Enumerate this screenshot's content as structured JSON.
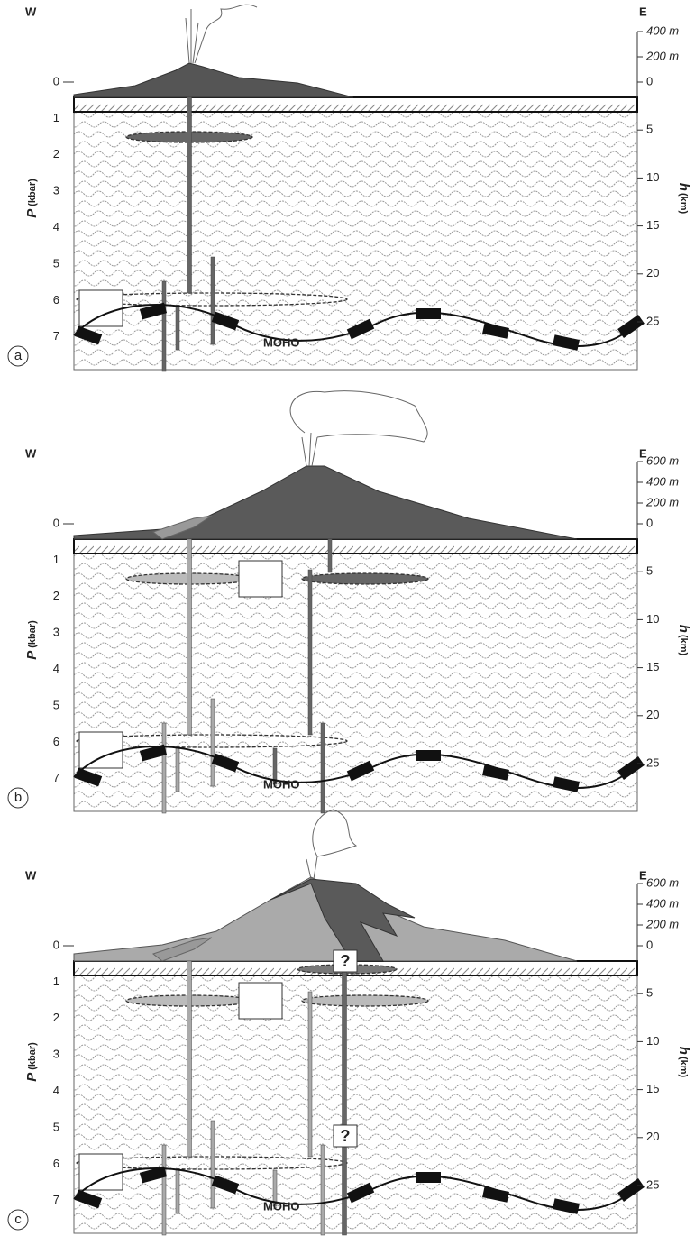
{
  "panels": [
    {
      "letter": "a",
      "west": "W",
      "east": "E",
      "pressure_label": "P",
      "pressure_unit": "(kbar)",
      "pressure_ticks": [
        "0",
        "1",
        "2",
        "3",
        "4",
        "5",
        "6",
        "7"
      ],
      "elevation_ticks": [
        "400 m",
        "200 m"
      ],
      "depth_ticks": [
        "0",
        "5",
        "10",
        "15",
        "20",
        "25"
      ],
      "depth_label": "h",
      "depth_unit": "(km)",
      "moho": "MOHO"
    },
    {
      "letter": "b",
      "west": "W",
      "east": "E",
      "pressure_label": "P",
      "pressure_unit": "(kbar)",
      "pressure_ticks": [
        "0",
        "1",
        "2",
        "3",
        "4",
        "5",
        "6",
        "7"
      ],
      "elevation_ticks": [
        "600 m",
        "400 m",
        "200 m"
      ],
      "depth_ticks": [
        "0",
        "5",
        "10",
        "15",
        "20",
        "25"
      ],
      "depth_label": "h",
      "depth_unit": "(km)",
      "moho": "MOHO"
    },
    {
      "letter": "c",
      "west": "W",
      "east": "E",
      "pressure_label": "P",
      "pressure_unit": "(kbar)",
      "pressure_ticks": [
        "0",
        "1",
        "2",
        "3",
        "4",
        "5",
        "6",
        "7"
      ],
      "elevation_ticks": [
        "600 m",
        "400 m",
        "200 m"
      ],
      "depth_ticks": [
        "0",
        "5",
        "10",
        "15",
        "20",
        "25"
      ],
      "depth_label": "h",
      "depth_unit": "(km)",
      "moho": "MOHO",
      "question_marks": [
        "?",
        "?"
      ]
    }
  ]
}
